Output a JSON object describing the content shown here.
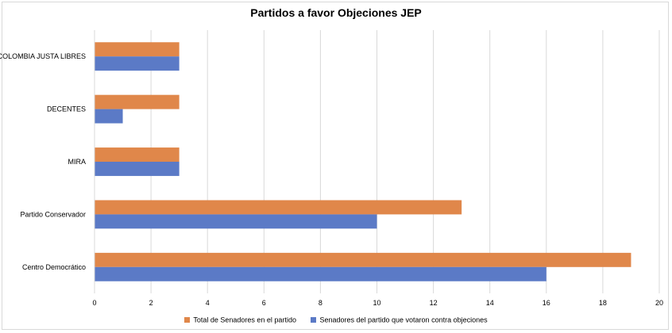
{
  "chart_data": {
    "type": "bar",
    "orientation": "horizontal",
    "title": "Partidos a favor Objeciones JEP",
    "categories": [
      "Centro Democrático",
      "Partido Conservador",
      "MIRA",
      "DECENTES",
      "COLOMBIA JUSTA LIBRES"
    ],
    "series": [
      {
        "name": "Total de Senadores en el partido",
        "color": "#e0874a",
        "values": [
          19,
          13,
          3,
          3,
          3
        ]
      },
      {
        "name": "Senadores del partido que votaron contra objeciones",
        "color": "#5b7ac6",
        "values": [
          16,
          10,
          3,
          1,
          3
        ]
      }
    ],
    "xlim": [
      0,
      20
    ],
    "xticks": [
      0,
      2,
      4,
      6,
      8,
      10,
      12,
      14,
      16,
      18,
      20
    ],
    "grid": true,
    "legend_position": "bottom",
    "xlabel": "",
    "ylabel": ""
  }
}
